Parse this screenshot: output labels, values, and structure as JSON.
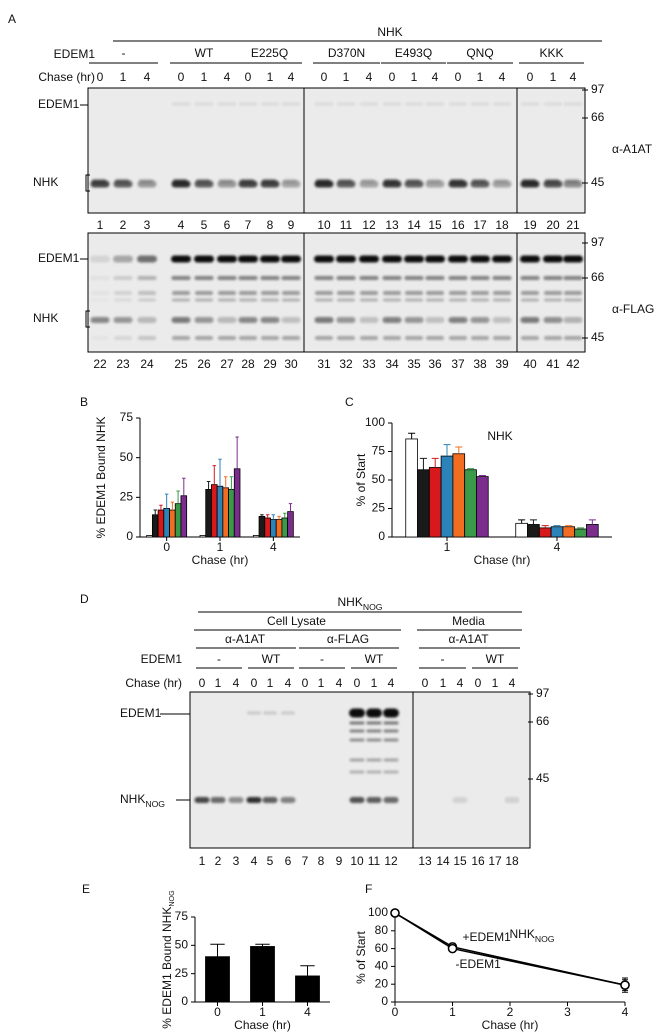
{
  "figure_a": {
    "letter": "A",
    "construct": "NHK",
    "edem1_label": "EDEM1",
    "groups": [
      "-",
      "WT",
      "E225Q",
      "D370N",
      "E493Q",
      "QNQ",
      "KKK"
    ],
    "chase_label": "Chase (hr)",
    "chase": [
      "0",
      "1",
      "4"
    ],
    "top_gel": {
      "band_labels": [
        "EDEM1",
        "NHK"
      ],
      "markers": [
        97,
        66,
        45
      ],
      "antibody": "α-A1AT",
      "lanes": [
        1,
        2,
        3,
        4,
        5,
        6,
        7,
        8,
        9,
        10,
        11,
        12,
        13,
        14,
        15,
        16,
        17,
        18,
        19,
        20,
        21
      ]
    },
    "bottom_gel": {
      "band_labels": [
        "EDEM1",
        "NHK"
      ],
      "markers": [
        97,
        66,
        45
      ],
      "antibody": "α-FLAG",
      "lanes": [
        22,
        23,
        24,
        25,
        26,
        27,
        28,
        29,
        30,
        31,
        32,
        33,
        34,
        35,
        36,
        37,
        38,
        39,
        40,
        41,
        42
      ]
    }
  },
  "figure_d": {
    "letter": "D",
    "construct": "NHK",
    "construct_sub": "NOG",
    "fractions": [
      "Cell Lysate",
      "Media"
    ],
    "antibodies": [
      "α-A1AT",
      "α-FLAG",
      "α-A1AT"
    ],
    "edem1_label": "EDEM1",
    "groups": [
      "-",
      "WT",
      "-",
      "WT",
      "-",
      "WT"
    ],
    "chase_label": "Chase (hr)",
    "chase": [
      "0",
      "1",
      "4"
    ],
    "markers": [
      97,
      66,
      45
    ],
    "band_labels": [
      "EDEM1",
      "NHK"
    ],
    "band_label_sub": "NOG",
    "lanes": [
      1,
      2,
      3,
      4,
      5,
      6,
      7,
      8,
      9,
      10,
      11,
      12,
      13,
      14,
      15,
      16,
      17,
      18
    ]
  },
  "chart_data": [
    {
      "label": "B",
      "type": "bar",
      "y_label": "% EDEM1 Bound NHK",
      "x_label": "Chase (hr)",
      "categories": [
        "0",
        "1",
        "4"
      ],
      "ylim": [
        0,
        75
      ],
      "yticks": [
        0,
        25,
        50,
        75
      ],
      "series": [
        {
          "color": "#ffffff",
          "values": [
            1,
            1,
            1
          ],
          "errors": [
            null,
            null,
            null
          ]
        },
        {
          "color": "#1a1a1a",
          "values": [
            14,
            30,
            13
          ],
          "errors": [
            3,
            5,
            1
          ]
        },
        {
          "color": "#d7191c",
          "values": [
            17,
            33,
            12
          ],
          "errors": [
            3,
            12,
            2
          ]
        },
        {
          "color": "#2b83ba",
          "values": [
            18,
            32,
            11
          ],
          "errors": [
            9,
            17,
            3
          ]
        },
        {
          "color": "#f26d21",
          "values": [
            17,
            31,
            11
          ],
          "errors": [
            5,
            7,
            2
          ]
        },
        {
          "color": "#3a9a4a",
          "values": [
            21,
            30,
            12
          ],
          "errors": [
            8,
            8,
            3
          ]
        },
        {
          "color": "#7b2d8e",
          "values": [
            26,
            43,
            16
          ],
          "errors": [
            11,
            20,
            5
          ]
        }
      ]
    },
    {
      "label": "C",
      "type": "bar",
      "annotation": "NHK",
      "y_label": "% of Start",
      "x_label": "Chase (hr)",
      "categories": [
        "1",
        "4"
      ],
      "ylim": [
        0,
        100
      ],
      "yticks": [
        0,
        25,
        50,
        75,
        100
      ],
      "series": [
        {
          "color": "#ffffff",
          "values": [
            86,
            12
          ],
          "errors": [
            5,
            3
          ]
        },
        {
          "color": "#1a1a1a",
          "values": [
            59,
            11
          ],
          "errors": [
            10,
            4
          ]
        },
        {
          "color": "#d7191c",
          "values": [
            61,
            8
          ],
          "errors": [
            8,
            2
          ]
        },
        {
          "color": "#2b83ba",
          "values": [
            71,
            9
          ],
          "errors": [
            10,
            1
          ]
        },
        {
          "color": "#f26d21",
          "values": [
            73,
            9
          ],
          "errors": [
            6,
            1
          ]
        },
        {
          "color": "#3a9a4a",
          "values": [
            59,
            7
          ],
          "errors": [
            1,
            1
          ]
        },
        {
          "color": "#7b2d8e",
          "values": [
            53,
            11
          ],
          "errors": [
            1,
            4
          ]
        }
      ]
    },
    {
      "label": "E",
      "type": "bar",
      "y_label": "% EDEM1 Bound NHK",
      "y_label_sub": "NOG",
      "x_label": "Chase (hr)",
      "categories": [
        "0",
        "1",
        "4"
      ],
      "ylim": [
        0,
        75
      ],
      "yticks": [
        0,
        25,
        50,
        75
      ],
      "series": [
        {
          "color": "#000000",
          "values": [
            40,
            49,
            23
          ],
          "errors": [
            11,
            2,
            9
          ]
        }
      ]
    },
    {
      "label": "F",
      "type": "line",
      "annotation": "NHK",
      "annotation_sub": "NOG",
      "y_label": "% of Start",
      "x_label": "Chase (hr)",
      "x": [
        0,
        1,
        4
      ],
      "xlim": [
        0,
        4
      ],
      "xticks": [
        0,
        1,
        2,
        3,
        4
      ],
      "ylim": [
        0,
        100
      ],
      "yticks": [
        0,
        20,
        40,
        60,
        80,
        100
      ],
      "series": [
        {
          "name": "+EDEM1",
          "color": "#000000",
          "values": [
            100,
            62,
            19
          ],
          "errors": [
            0,
            4,
            8
          ]
        },
        {
          "name": "-EDEM1",
          "color": "#000000",
          "values": [
            100,
            60,
            19
          ],
          "errors": [
            0,
            3,
            6
          ]
        }
      ]
    }
  ]
}
